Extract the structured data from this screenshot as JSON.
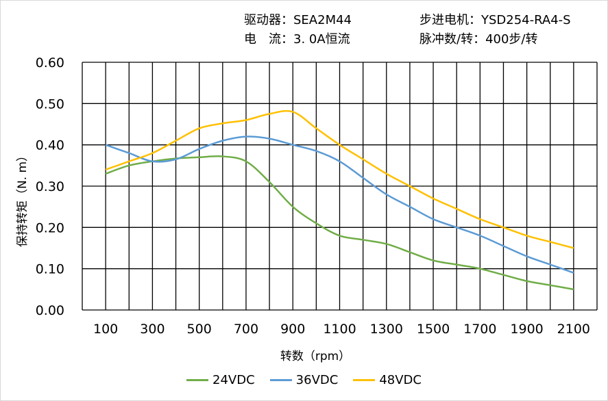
{
  "header": {
    "driver": "驱动器：SEA2M44",
    "motor": "步进电机：YSD254-RA4-S",
    "current": "电　流：3. 0A恒流",
    "pulses": "脉冲数/转：400步/转"
  },
  "chart_data": {
    "type": "line",
    "title": "",
    "xlabel": "转数（rpm）",
    "ylabel": "保持转矩（N. m）",
    "xlim": [
      0,
      2200
    ],
    "ylim": [
      0,
      0.6
    ],
    "grid": true,
    "legend_position": "bottom",
    "x_ticks": [
      "100",
      "300",
      "500",
      "700",
      "900",
      "1100",
      "1300",
      "1500",
      "1700",
      "1900",
      "2100"
    ],
    "y_ticks": [
      "0.00",
      "0.10",
      "0.20",
      "0.30",
      "0.40",
      "0.50",
      "0.60"
    ],
    "x": [
      100,
      200,
      300,
      400,
      500,
      600,
      700,
      800,
      900,
      1000,
      1100,
      1200,
      1300,
      1400,
      1500,
      1600,
      1700,
      1800,
      1900,
      2000,
      2100
    ],
    "series": [
      {
        "name": "24VDC",
        "color": "#70ad47",
        "values": [
          0.33,
          0.35,
          0.36,
          0.367,
          0.37,
          0.372,
          0.36,
          0.31,
          0.25,
          0.21,
          0.18,
          0.17,
          0.16,
          0.14,
          0.12,
          0.11,
          0.1,
          0.085,
          0.07,
          0.06,
          0.05
        ]
      },
      {
        "name": "36VDC",
        "color": "#5b9bd5",
        "values": [
          0.4,
          0.38,
          0.36,
          0.365,
          0.39,
          0.41,
          0.42,
          0.415,
          0.4,
          0.385,
          0.36,
          0.32,
          0.28,
          0.25,
          0.22,
          0.2,
          0.18,
          0.155,
          0.13,
          0.11,
          0.09
        ]
      },
      {
        "name": "48VDC",
        "color": "#ffc000",
        "values": [
          0.34,
          0.36,
          0.38,
          0.41,
          0.44,
          0.452,
          0.46,
          0.475,
          0.48,
          0.44,
          0.4,
          0.365,
          0.33,
          0.3,
          0.27,
          0.245,
          0.22,
          0.2,
          0.18,
          0.165,
          0.15
        ]
      }
    ]
  }
}
